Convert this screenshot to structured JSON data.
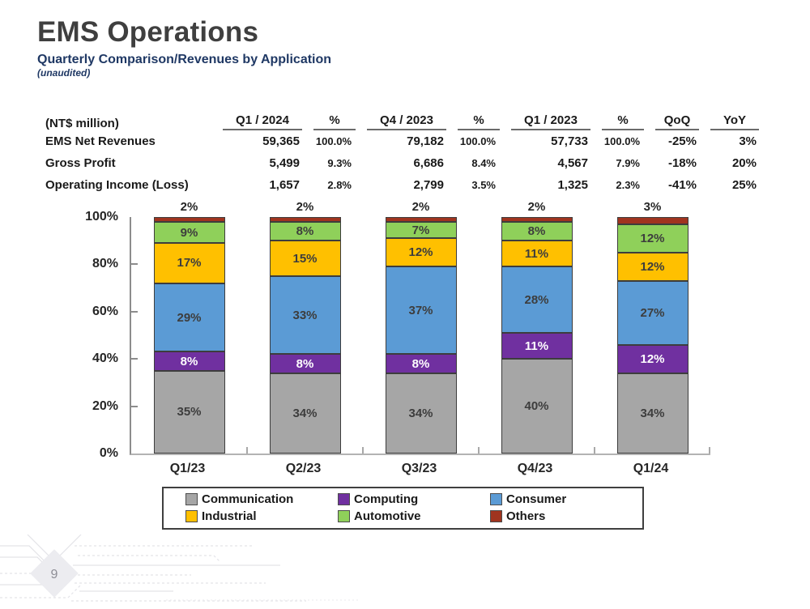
{
  "header": {
    "title": "EMS Operations",
    "subtitle": "Quarterly Comparison/Revenues by Application",
    "note": "(unaudited)"
  },
  "table": {
    "unit_label": "(NT$ million)",
    "columns": [
      "Q1 / 2024",
      "%",
      "Q4 / 2023",
      "%",
      "Q1 / 2023",
      "%",
      "QoQ",
      "YoY"
    ],
    "rows": [
      {
        "label": "EMS Net Revenues",
        "cells": [
          "59,365",
          "100.0%",
          "79,182",
          "100.0%",
          "57,733",
          "100.0%",
          "-25%",
          "3%"
        ]
      },
      {
        "label": "Gross Profit",
        "cells": [
          "5,499",
          "9.3%",
          "6,686",
          "8.4%",
          "4,567",
          "7.9%",
          "-18%",
          "20%"
        ]
      },
      {
        "label": "Operating Income (Loss)",
        "cells": [
          "1,657",
          "2.8%",
          "2,799",
          "3.5%",
          "1,325",
          "2.3%",
          "-41%",
          "25%"
        ]
      }
    ]
  },
  "chart_data": {
    "type": "bar",
    "subtype": "100%-stacked-column",
    "categories": [
      "Q1/23",
      "Q2/23",
      "Q3/23",
      "Q4/23",
      "Q1/24"
    ],
    "series": [
      {
        "name": "Communication",
        "color": "#A6A6A6",
        "label_color": "#3d3d3d",
        "values": [
          35,
          34,
          34,
          40,
          34
        ]
      },
      {
        "name": "Computing",
        "color": "#7030A0",
        "label_color": "#ffffff",
        "values": [
          8,
          8,
          8,
          11,
          12
        ]
      },
      {
        "name": "Consumer",
        "color": "#5B9BD5",
        "label_color": "#3d3d3d",
        "values": [
          29,
          33,
          37,
          28,
          27
        ]
      },
      {
        "name": "Industrial",
        "color": "#FFC000",
        "label_color": "#3d3d3d",
        "values": [
          17,
          15,
          12,
          11,
          12
        ]
      },
      {
        "name": "Automotive",
        "color": "#8FD05A",
        "label_color": "#3d3d3d",
        "values": [
          9,
          8,
          7,
          8,
          12
        ]
      },
      {
        "name": "Others",
        "color": "#A0341F",
        "label_color": "#262626",
        "values": [
          2,
          2,
          2,
          2,
          3
        ],
        "label_position": "above"
      }
    ],
    "y_ticks": [
      "0%",
      "20%",
      "40%",
      "60%",
      "80%",
      "100%"
    ],
    "ylim": [
      0,
      100
    ],
    "grid": false,
    "legend_position": "bottom"
  },
  "footer": {
    "page_number": "9"
  }
}
